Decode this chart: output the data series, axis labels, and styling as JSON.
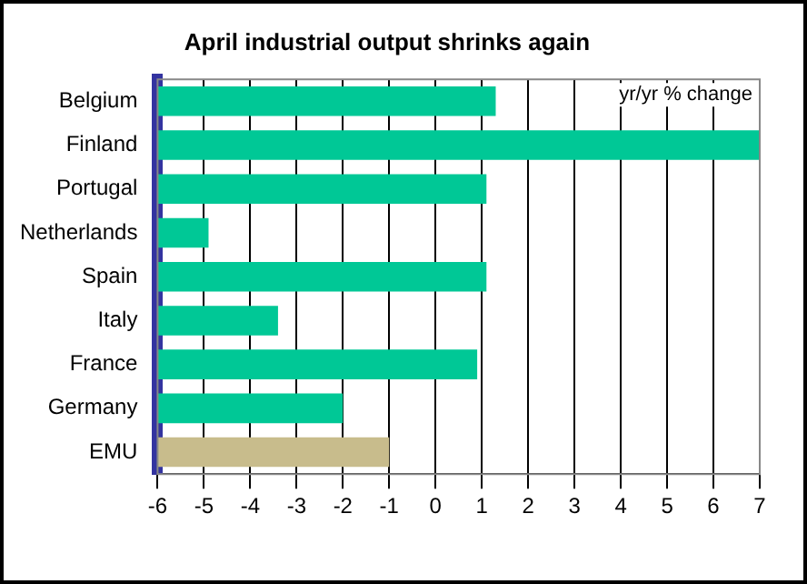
{
  "chart_data": {
    "type": "bar",
    "orientation": "horizontal",
    "title": "April industrial output shrinks again",
    "categories": [
      "Belgium",
      "Finland",
      "Portugal",
      "Netherlands",
      "Spain",
      "Italy",
      "France",
      "Germany",
      "EMU"
    ],
    "base": [
      -6,
      -6,
      -6,
      -6,
      -6,
      -6,
      -6,
      -6,
      -6
    ],
    "values": [
      7.3,
      13.0,
      7.1,
      1.1,
      7.1,
      2.6,
      6.9,
      4.0,
      5.0
    ],
    "colors": [
      "#00c896",
      "#00c896",
      "#00c896",
      "#00c896",
      "#00c896",
      "#00c896",
      "#00c896",
      "#00c896",
      "#c8bc8c"
    ],
    "xlim": [
      -6,
      7
    ],
    "xticks": [
      -6,
      -5,
      -4,
      -3,
      -2,
      -1,
      0,
      1,
      2,
      3,
      4,
      5,
      6,
      7
    ],
    "grid": "x",
    "annotations": [
      "yr/yr % change"
    ]
  }
}
